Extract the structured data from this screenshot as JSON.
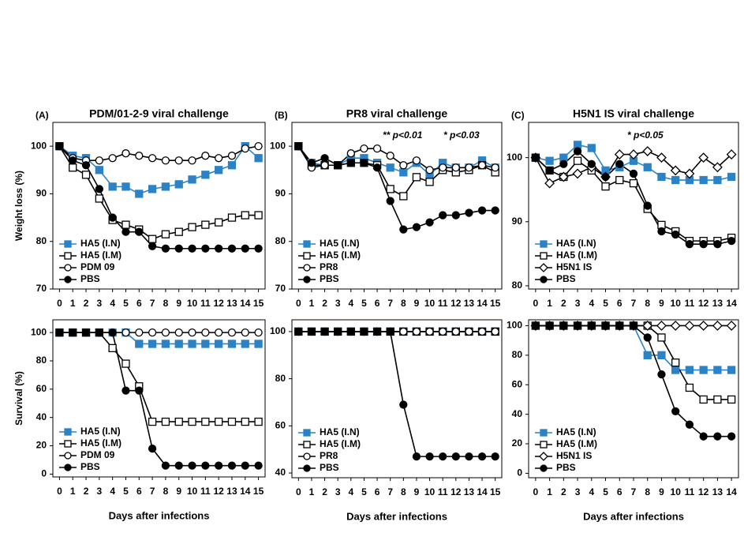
{
  "chart_data": [
    {
      "type": "line",
      "panel": "(A)",
      "title": "PDM/01-2-9  viral challenge",
      "y_label": "Weight loss (%)",
      "x": [
        0,
        1,
        2,
        3,
        4,
        5,
        6,
        7,
        8,
        9,
        10,
        11,
        12,
        13,
        14,
        15
      ],
      "xticks": [
        0,
        1,
        2,
        3,
        4,
        5,
        6,
        7,
        8,
        9,
        10,
        11,
        12,
        13,
        14,
        15
      ],
      "xlim": [
        -0.5,
        15.5
      ],
      "ylim": [
        70,
        105
      ],
      "yticks": [
        70,
        80,
        90,
        100
      ],
      "legend": "lower left",
      "series": [
        {
          "name": "HA5 (I.N)",
          "color": "#2b83c6",
          "marker": "square-filled",
          "values": [
            100,
            98,
            97.5,
            95,
            91.5,
            91.5,
            90,
            91,
            91.5,
            92,
            93,
            94,
            95,
            96,
            100,
            97.5
          ]
        },
        {
          "name": "HA5 (I.M)",
          "color": "#000000",
          "marker": "square-open",
          "values": [
            100,
            95.5,
            94,
            89,
            84.5,
            83.5,
            82.5,
            80.5,
            81.5,
            82,
            83,
            83.5,
            84,
            85,
            85.5,
            85.5
          ]
        },
        {
          "name": "PDM 09",
          "color": "#000000",
          "marker": "circle-open",
          "values": [
            100,
            97.5,
            97,
            97,
            97.5,
            98.5,
            98,
            97.5,
            97,
            97,
            97,
            98,
            97.5,
            98,
            99.5,
            100
          ]
        },
        {
          "name": "PBS",
          "color": "#000000",
          "marker": "circle-filled",
          "values": [
            100,
            97,
            96,
            91,
            85,
            82,
            82,
            79,
            78.5,
            78.5,
            78.5,
            78.5,
            78.5,
            78.5,
            78.5,
            78.5
          ]
        }
      ]
    },
    {
      "type": "line",
      "panel": "(B)",
      "title": "PR8 viral challenge",
      "annotations": [
        "** p<0.01",
        "* p<0.03"
      ],
      "x": [
        0,
        1,
        2,
        3,
        4,
        5,
        6,
        7,
        8,
        9,
        10,
        11,
        12,
        13,
        14,
        15
      ],
      "xticks": [
        0,
        1,
        2,
        3,
        4,
        5,
        6,
        7,
        8,
        9,
        10,
        11,
        12,
        13,
        14,
        15
      ],
      "xlim": [
        -0.5,
        15.5
      ],
      "ylim": [
        70,
        105
      ],
      "yticks": [
        70,
        80,
        90,
        100
      ],
      "legend": "lower left",
      "series": [
        {
          "name": "HA5 (I.N)",
          "color": "#2b83c6",
          "marker": "square-filled",
          "values": [
            100,
            96.5,
            96,
            96,
            97.5,
            97.5,
            96.5,
            95.5,
            94.5,
            96.5,
            94,
            96.5,
            95.5,
            95.5,
            97,
            95.5
          ]
        },
        {
          "name": "HA5 (I.M)",
          "color": "#000000",
          "marker": "square-open",
          "values": [
            100,
            96,
            96,
            96,
            96.5,
            96.5,
            96,
            91,
            89.5,
            93.5,
            92.5,
            95,
            94.5,
            95,
            96,
            94.5
          ]
        },
        {
          "name": "PR8",
          "color": "#000000",
          "marker": "circle-open",
          "values": [
            100,
            95.5,
            96,
            96,
            98.5,
            99.5,
            99.5,
            98,
            96,
            97,
            95,
            95.5,
            95.5,
            95.5,
            96,
            95.5
          ]
        },
        {
          "name": "PBS",
          "color": "#000000",
          "marker": "circle-filled",
          "values": [
            100,
            96.5,
            97.5,
            96,
            96.5,
            96.5,
            95.5,
            88.5,
            82.5,
            83,
            84,
            85.5,
            85.5,
            86,
            86.5,
            86.5
          ]
        }
      ]
    },
    {
      "type": "line",
      "panel": "(C)",
      "title": "H5N1 IS viral challenge",
      "annotations": [
        "* p<0.05"
      ],
      "x": [
        0,
        1,
        2,
        3,
        4,
        5,
        6,
        7,
        8,
        9,
        10,
        11,
        12,
        13,
        14
      ],
      "xticks": [
        0,
        1,
        2,
        3,
        4,
        5,
        6,
        7,
        8,
        9,
        10,
        11,
        12,
        13,
        14
      ],
      "xlim": [
        -0.5,
        14.5
      ],
      "ylim": [
        79.5,
        105.5
      ],
      "yticks": [
        80,
        90,
        100
      ],
      "legend": "lower left",
      "series": [
        {
          "name": "HA5 (I.N)",
          "color": "#2b83c6",
          "marker": "square-filled",
          "values": [
            100,
            99.5,
            100,
            102,
            101.5,
            98,
            98.5,
            99.5,
            98.5,
            97,
            96.5,
            96.5,
            96.5,
            96.5,
            97
          ]
        },
        {
          "name": "HA5 (I.M)",
          "color": "#000000",
          "marker": "square-open",
          "values": [
            100,
            98,
            97,
            99.5,
            98,
            95.5,
            96.5,
            96,
            92,
            89.5,
            88.5,
            87,
            87,
            87,
            87.5
          ]
        },
        {
          "name": "H5N1 IS",
          "color": "#000000",
          "marker": "diamond-open",
          "values": [
            100,
            96,
            97,
            97.5,
            98.5,
            97,
            100.5,
            100.5,
            101,
            100,
            98,
            97.5,
            100,
            98.5,
            100.5
          ]
        },
        {
          "name": "PBS",
          "color": "#000000",
          "marker": "circle-filled",
          "values": [
            100,
            98,
            99,
            101,
            99,
            97,
            99,
            97.5,
            92.5,
            88.5,
            88,
            86.5,
            86.5,
            86.5,
            87
          ]
        }
      ]
    },
    {
      "type": "line",
      "y_label": "Survival (%)",
      "x_label": "Days after infections",
      "x": [
        0,
        1,
        2,
        3,
        4,
        5,
        6,
        7,
        8,
        9,
        10,
        11,
        12,
        13,
        14,
        15
      ],
      "xticks": [
        0,
        1,
        2,
        3,
        4,
        5,
        6,
        7,
        8,
        9,
        10,
        11,
        12,
        13,
        14,
        15
      ],
      "xlim": [
        -0.5,
        15.5
      ],
      "ylim": [
        -2,
        109
      ],
      "yticks": [
        0,
        20,
        40,
        60,
        80,
        100
      ],
      "legend": "lower left",
      "series": [
        {
          "name": "HA5 (I.N)",
          "color": "#2b83c6",
          "marker": "square-filled",
          "values": [
            100,
            100,
            100,
            100,
            100,
            100,
            92,
            92,
            92,
            92,
            92,
            92,
            92,
            92,
            92,
            92
          ]
        },
        {
          "name": "HA5 (I.M)",
          "color": "#000000",
          "marker": "square-open",
          "values": [
            100,
            100,
            100,
            100,
            89,
            78,
            62,
            37,
            37,
            37,
            37,
            37,
            37,
            37,
            37,
            37
          ]
        },
        {
          "name": "PDM 09",
          "color": "#000000",
          "marker": "circle-open",
          "values": [
            100,
            100,
            100,
            100,
            100,
            100,
            100,
            100,
            100,
            100,
            100,
            100,
            100,
            100,
            100,
            100
          ]
        },
        {
          "name": "PBS",
          "color": "#000000",
          "marker": "circle-filled",
          "values": [
            100,
            100,
            100,
            100,
            100,
            59,
            59,
            18,
            6,
            6,
            6,
            6,
            6,
            6,
            6,
            6
          ]
        }
      ]
    },
    {
      "type": "line",
      "x_label": "Days after infections",
      "x": [
        0,
        1,
        2,
        3,
        4,
        5,
        6,
        7,
        8,
        9,
        10,
        11,
        12,
        13,
        14,
        15
      ],
      "xticks": [
        0,
        1,
        2,
        3,
        4,
        5,
        6,
        7,
        8,
        9,
        10,
        11,
        12,
        13,
        14,
        15
      ],
      "xlim": [
        -0.5,
        15.5
      ],
      "ylim": [
        38,
        105
      ],
      "yticks": [
        40,
        60,
        80,
        100
      ],
      "legend": "lower left",
      "series": [
        {
          "name": "HA5 (I.N)",
          "color": "#2b83c6",
          "marker": "square-filled",
          "values": [
            100,
            100,
            100,
            100,
            100,
            100,
            100,
            100,
            100,
            100,
            100,
            100,
            100,
            100,
            100,
            100
          ]
        },
        {
          "name": "HA5 (I.M)",
          "color": "#000000",
          "marker": "square-open",
          "values": [
            100,
            100,
            100,
            100,
            100,
            100,
            100,
            100,
            100,
            100,
            100,
            100,
            100,
            100,
            100,
            100
          ]
        },
        {
          "name": "PR8",
          "color": "#000000",
          "marker": "circle-open",
          "values": [
            100,
            100,
            100,
            100,
            100,
            100,
            100,
            100,
            100,
            100,
            100,
            100,
            100,
            100,
            100,
            100
          ]
        },
        {
          "name": "PBS",
          "color": "#000000",
          "marker": "circle-filled",
          "values": [
            100,
            100,
            100,
            100,
            100,
            100,
            100,
            100,
            69,
            47,
            47,
            47,
            47,
            47,
            47,
            47
          ]
        }
      ]
    },
    {
      "type": "line",
      "x_label": "Days after infections",
      "x": [
        0,
        1,
        2,
        3,
        4,
        5,
        6,
        7,
        8,
        9,
        10,
        11,
        12,
        13,
        14
      ],
      "xticks": [
        0,
        1,
        2,
        3,
        4,
        5,
        6,
        7,
        8,
        9,
        10,
        11,
        12,
        13,
        14
      ],
      "xlim": [
        -0.5,
        14.5
      ],
      "ylim": [
        -3,
        104
      ],
      "yticks": [
        0,
        20,
        40,
        60,
        80,
        100
      ],
      "legend": "lower left",
      "series": [
        {
          "name": "HA5 (I.N)",
          "color": "#2b83c6",
          "marker": "square-filled",
          "values": [
            100,
            100,
            100,
            100,
            100,
            100,
            100,
            100,
            80,
            80,
            70,
            70,
            70,
            70,
            70
          ]
        },
        {
          "name": "HA5 (I.M)",
          "color": "#000000",
          "marker": "square-open",
          "values": [
            100,
            100,
            100,
            100,
            100,
            100,
            100,
            100,
            100,
            92,
            75,
            58,
            50,
            50,
            50
          ]
        },
        {
          "name": "H5N1 IS",
          "color": "#000000",
          "marker": "diamond-open",
          "values": [
            100,
            100,
            100,
            100,
            100,
            100,
            100,
            100,
            100,
            100,
            100,
            100,
            100,
            100,
            100
          ]
        },
        {
          "name": "PBS",
          "color": "#000000",
          "marker": "circle-filled",
          "values": [
            100,
            100,
            100,
            100,
            100,
            100,
            100,
            100,
            92,
            67,
            42,
            33,
            25,
            25,
            25
          ]
        }
      ]
    }
  ]
}
